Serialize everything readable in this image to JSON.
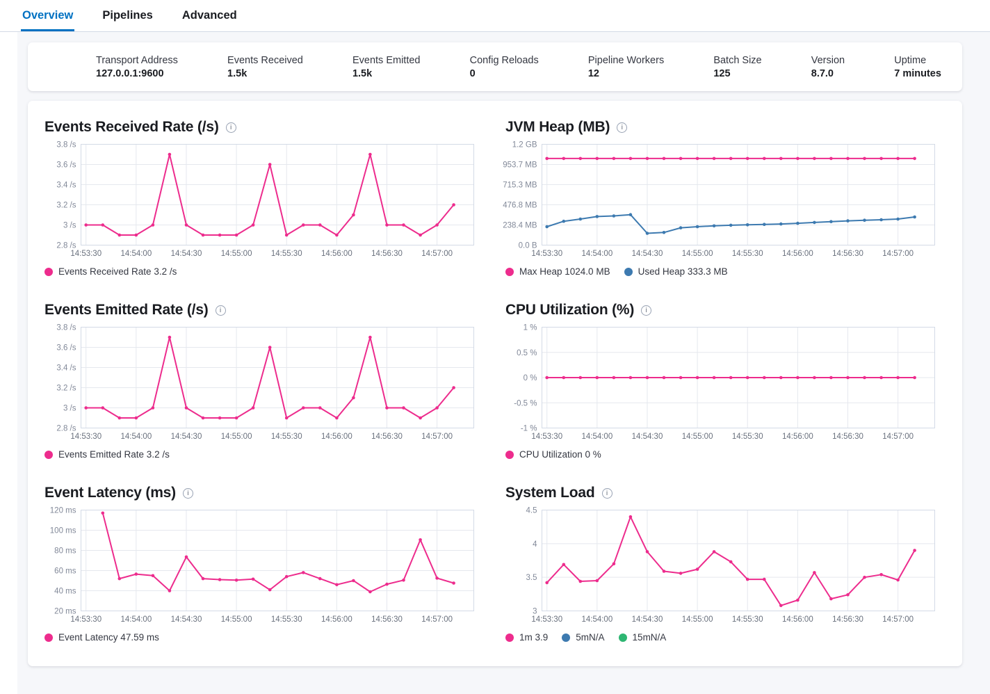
{
  "icons": {
    "info_letter": "i"
  },
  "tabs": {
    "items": [
      {
        "label": "Overview",
        "active": true
      },
      {
        "label": "Pipelines",
        "active": false
      },
      {
        "label": "Advanced",
        "active": false
      }
    ]
  },
  "summary": {
    "items": [
      {
        "label": "Transport Address",
        "value": "127.0.0.1:9600"
      },
      {
        "label": "Events Received",
        "value": "1.5k"
      },
      {
        "label": "Events Emitted",
        "value": "1.5k"
      },
      {
        "label": "Config Reloads",
        "value": "0"
      },
      {
        "label": "Pipeline Workers",
        "value": "12"
      },
      {
        "label": "Batch Size",
        "value": "125"
      },
      {
        "label": "Version",
        "value": "8.7.0"
      },
      {
        "label": "Uptime",
        "value": "7 minutes"
      }
    ]
  },
  "colors": {
    "accent": "#0071c2",
    "pink": "#ed2c8d",
    "blue": "#3d7ab0",
    "green": "#2eb672",
    "grid": "#e5e8ee",
    "frame": "#d3dae6",
    "tick_text": "#69707d"
  },
  "chart_data": [
    {
      "type": "line",
      "title": "Events Received Rate (/s)",
      "ylim": [
        2.8,
        3.8
      ],
      "y_ticks": [
        {
          "v": 3.8,
          "label": "3.8 /s"
        },
        {
          "v": 3.6,
          "label": "3.6 /s"
        },
        {
          "v": 3.4,
          "label": "3.4 /s"
        },
        {
          "v": 3.2,
          "label": "3.2 /s"
        },
        {
          "v": 3.0,
          "label": "3 /s"
        },
        {
          "v": 2.8,
          "label": "2.8 /s"
        }
      ],
      "x_ticks": [
        "14:53:30",
        "14:54:00",
        "14:54:30",
        "14:55:00",
        "14:55:30",
        "14:56:00",
        "14:56:30",
        "14:57:00"
      ],
      "series": [
        {
          "name": "Events Received Rate 3.2 /s",
          "color": "pink",
          "x": [
            "14:53:30",
            "14:53:40",
            "14:53:50",
            "14:54:00",
            "14:54:10",
            "14:54:20",
            "14:54:30",
            "14:54:40",
            "14:54:50",
            "14:55:00",
            "14:55:10",
            "14:55:20",
            "14:55:30",
            "14:55:40",
            "14:55:50",
            "14:56:00",
            "14:56:10",
            "14:56:20",
            "14:56:30",
            "14:56:40",
            "14:56:50",
            "14:57:00",
            "14:57:10"
          ],
          "values": [
            3.0,
            3.0,
            2.9,
            2.9,
            3.0,
            3.7,
            3.0,
            2.9,
            2.9,
            2.9,
            3.0,
            3.6,
            2.9,
            3.0,
            3.0,
            2.9,
            3.1,
            3.7,
            3.0,
            3.0,
            2.9,
            3.0,
            3.2
          ]
        }
      ]
    },
    {
      "type": "line",
      "title": "JVM Heap (MB)",
      "ylim": [
        0,
        1192.1
      ],
      "y_ticks": [
        {
          "v": 1192.1,
          "label": "1.2 GB"
        },
        {
          "v": 953.7,
          "label": "953.7 MB"
        },
        {
          "v": 715.3,
          "label": "715.3 MB"
        },
        {
          "v": 476.8,
          "label": "476.8 MB"
        },
        {
          "v": 238.4,
          "label": "238.4 MB"
        },
        {
          "v": 0,
          "label": "0.0 B"
        }
      ],
      "x_ticks": [
        "14:53:30",
        "14:54:00",
        "14:54:30",
        "14:55:00",
        "14:55:30",
        "14:56:00",
        "14:56:30",
        "14:57:00"
      ],
      "series": [
        {
          "name": "Max Heap 1024.0 MB",
          "color": "pink",
          "x": [
            "14:53:30",
            "14:53:40",
            "14:53:50",
            "14:54:00",
            "14:54:10",
            "14:54:20",
            "14:54:30",
            "14:54:40",
            "14:54:50",
            "14:55:00",
            "14:55:10",
            "14:55:20",
            "14:55:30",
            "14:55:40",
            "14:55:50",
            "14:56:00",
            "14:56:10",
            "14:56:20",
            "14:56:30",
            "14:56:40",
            "14:56:50",
            "14:57:00",
            "14:57:10"
          ],
          "values": [
            1024,
            1024,
            1024,
            1024,
            1024,
            1024,
            1024,
            1024,
            1024,
            1024,
            1024,
            1024,
            1024,
            1024,
            1024,
            1024,
            1024,
            1024,
            1024,
            1024,
            1024,
            1024,
            1024
          ]
        },
        {
          "name": "Used Heap 333.3 MB",
          "color": "blue",
          "x": [
            "14:53:30",
            "14:53:40",
            "14:53:50",
            "14:54:00",
            "14:54:10",
            "14:54:20",
            "14:54:30",
            "14:54:40",
            "14:54:50",
            "14:55:00",
            "14:55:10",
            "14:55:20",
            "14:55:30",
            "14:55:40",
            "14:55:50",
            "14:56:00",
            "14:56:10",
            "14:56:20",
            "14:56:30",
            "14:56:40",
            "14:56:50",
            "14:57:00",
            "14:57:10"
          ],
          "values": [
            218,
            282,
            308,
            338,
            345,
            360,
            140,
            150,
            205,
            218,
            228,
            235,
            240,
            245,
            250,
            258,
            268,
            278,
            287,
            294,
            300,
            308,
            333.3
          ]
        }
      ]
    },
    {
      "type": "line",
      "title": "Events Emitted Rate (/s)",
      "ylim": [
        2.8,
        3.8
      ],
      "y_ticks": [
        {
          "v": 3.8,
          "label": "3.8 /s"
        },
        {
          "v": 3.6,
          "label": "3.6 /s"
        },
        {
          "v": 3.4,
          "label": "3.4 /s"
        },
        {
          "v": 3.2,
          "label": "3.2 /s"
        },
        {
          "v": 3.0,
          "label": "3 /s"
        },
        {
          "v": 2.8,
          "label": "2.8 /s"
        }
      ],
      "x_ticks": [
        "14:53:30",
        "14:54:00",
        "14:54:30",
        "14:55:00",
        "14:55:30",
        "14:56:00",
        "14:56:30",
        "14:57:00"
      ],
      "series": [
        {
          "name": "Events Emitted Rate 3.2 /s",
          "color": "pink",
          "x": [
            "14:53:30",
            "14:53:40",
            "14:53:50",
            "14:54:00",
            "14:54:10",
            "14:54:20",
            "14:54:30",
            "14:54:40",
            "14:54:50",
            "14:55:00",
            "14:55:10",
            "14:55:20",
            "14:55:30",
            "14:55:40",
            "14:55:50",
            "14:56:00",
            "14:56:10",
            "14:56:20",
            "14:56:30",
            "14:56:40",
            "14:56:50",
            "14:57:00",
            "14:57:10"
          ],
          "values": [
            3.0,
            3.0,
            2.9,
            2.9,
            3.0,
            3.7,
            3.0,
            2.9,
            2.9,
            2.9,
            3.0,
            3.6,
            2.9,
            3.0,
            3.0,
            2.9,
            3.1,
            3.7,
            3.0,
            3.0,
            2.9,
            3.0,
            3.2
          ]
        }
      ]
    },
    {
      "type": "line",
      "title": "CPU Utilization (%)",
      "ylim": [
        -1,
        1
      ],
      "y_ticks": [
        {
          "v": 1,
          "label": "1 %"
        },
        {
          "v": 0.5,
          "label": "0.5 %"
        },
        {
          "v": 0,
          "label": "0 %"
        },
        {
          "v": -0.5,
          "label": "-0.5 %"
        },
        {
          "v": -1,
          "label": "-1 %"
        }
      ],
      "x_ticks": [
        "14:53:30",
        "14:54:00",
        "14:54:30",
        "14:55:00",
        "14:55:30",
        "14:56:00",
        "14:56:30",
        "14:57:00"
      ],
      "series": [
        {
          "name": "CPU Utilization 0 %",
          "color": "pink",
          "x": [
            "14:53:30",
            "14:53:40",
            "14:53:50",
            "14:54:00",
            "14:54:10",
            "14:54:20",
            "14:54:30",
            "14:54:40",
            "14:54:50",
            "14:55:00",
            "14:55:10",
            "14:55:20",
            "14:55:30",
            "14:55:40",
            "14:55:50",
            "14:56:00",
            "14:56:10",
            "14:56:20",
            "14:56:30",
            "14:56:40",
            "14:56:50",
            "14:57:00",
            "14:57:10"
          ],
          "values": [
            0,
            0,
            0,
            0,
            0,
            0,
            0,
            0,
            0,
            0,
            0,
            0,
            0,
            0,
            0,
            0,
            0,
            0,
            0,
            0,
            0,
            0,
            0
          ]
        }
      ]
    },
    {
      "type": "line",
      "title": "Event Latency (ms)",
      "ylim": [
        20,
        120
      ],
      "y_ticks": [
        {
          "v": 120,
          "label": "120 ms"
        },
        {
          "v": 100,
          "label": "100 ms"
        },
        {
          "v": 80,
          "label": "80 ms"
        },
        {
          "v": 60,
          "label": "60 ms"
        },
        {
          "v": 40,
          "label": "40 ms"
        },
        {
          "v": 20,
          "label": "20 ms"
        }
      ],
      "x_ticks": [
        "14:53:30",
        "14:54:00",
        "14:54:30",
        "14:55:00",
        "14:55:30",
        "14:56:00",
        "14:56:30",
        "14:57:00"
      ],
      "series": [
        {
          "name": "Event Latency 47.59 ms",
          "color": "pink",
          "x": [
            "14:53:40",
            "14:53:50",
            "14:54:00",
            "14:54:10",
            "14:54:20",
            "14:54:30",
            "14:54:40",
            "14:54:50",
            "14:55:00",
            "14:55:10",
            "14:55:20",
            "14:55:30",
            "14:55:40",
            "14:55:50",
            "14:56:00",
            "14:56:10",
            "14:56:20",
            "14:56:30",
            "14:56:40",
            "14:56:50",
            "14:57:00",
            "14:57:10"
          ],
          "values": [
            117,
            52,
            56.5,
            55,
            40,
            73.5,
            52,
            51,
            50.5,
            51.5,
            41,
            54,
            58,
            52,
            46,
            50,
            39,
            46.5,
            50.5,
            90.5,
            52.5,
            47.59
          ]
        }
      ]
    },
    {
      "type": "line",
      "title": "System Load",
      "ylim": [
        3,
        4.5
      ],
      "y_ticks": [
        {
          "v": 4.5,
          "label": "4.5"
        },
        {
          "v": 4,
          "label": "4"
        },
        {
          "v": 3.5,
          "label": "3.5"
        },
        {
          "v": 3,
          "label": "3"
        }
      ],
      "x_ticks": [
        "14:53:30",
        "14:54:00",
        "14:54:30",
        "14:55:00",
        "14:55:30",
        "14:56:00",
        "14:56:30",
        "14:57:00"
      ],
      "series": [
        {
          "name": "1m 3.9",
          "color": "pink",
          "x": [
            "14:53:30",
            "14:53:40",
            "14:53:50",
            "14:54:00",
            "14:54:10",
            "14:54:20",
            "14:54:30",
            "14:54:40",
            "14:54:50",
            "14:55:00",
            "14:55:10",
            "14:55:20",
            "14:55:30",
            "14:55:40",
            "14:55:50",
            "14:56:00",
            "14:56:10",
            "14:56:20",
            "14:56:30",
            "14:56:40",
            "14:56:50",
            "14:57:00",
            "14:57:10"
          ],
          "values": [
            3.42,
            3.69,
            3.44,
            3.45,
            3.7,
            4.4,
            3.88,
            3.59,
            3.56,
            3.62,
            3.88,
            3.73,
            3.47,
            3.47,
            3.08,
            3.16,
            3.57,
            3.18,
            3.24,
            3.5,
            3.54,
            3.46,
            3.9
          ]
        },
        {
          "name": "5mN/A",
          "color": "blue",
          "values": null
        },
        {
          "name": "15mN/A",
          "color": "green",
          "values": null
        }
      ]
    }
  ]
}
